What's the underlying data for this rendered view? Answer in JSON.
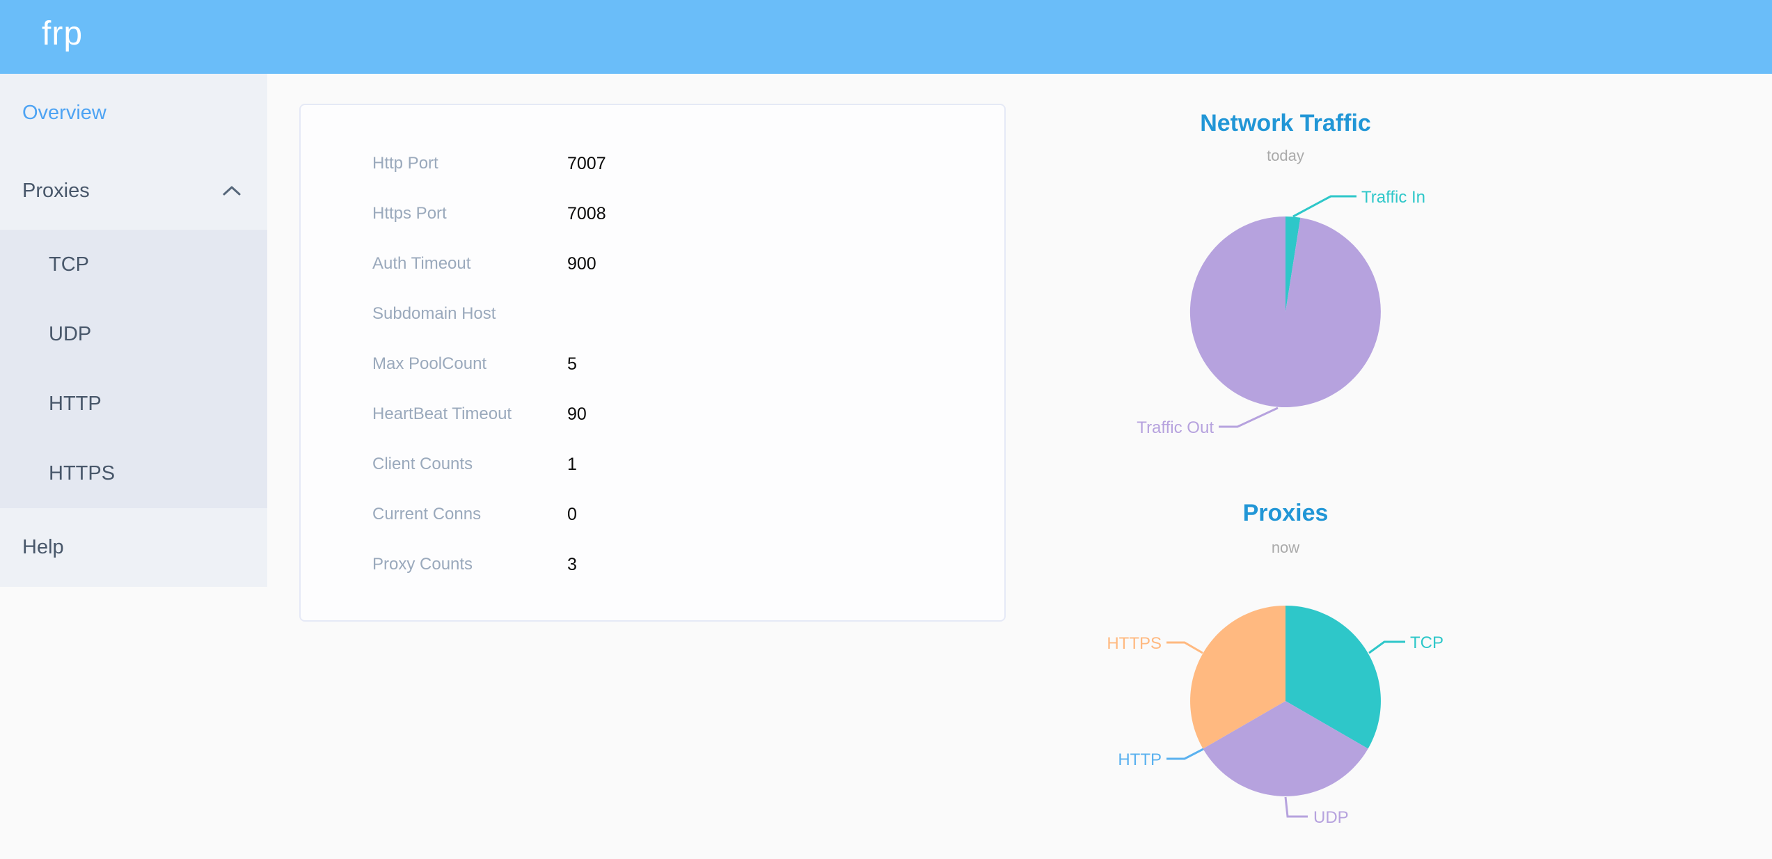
{
  "app": {
    "logo": "frp"
  },
  "sidebar": {
    "overview": "Overview",
    "proxies": "Proxies",
    "submenu": [
      "TCP",
      "UDP",
      "HTTP",
      "HTTPS"
    ],
    "help": "Help"
  },
  "server_info": {
    "rows": [
      {
        "label": "Http Port",
        "value": "7007"
      },
      {
        "label": "Https Port",
        "value": "7008"
      },
      {
        "label": "Auth Timeout",
        "value": "900"
      },
      {
        "label": "Subdomain Host",
        "value": ""
      },
      {
        "label": "Max PoolCount",
        "value": "5"
      },
      {
        "label": "HeartBeat Timeout",
        "value": "90"
      },
      {
        "label": "Client Counts",
        "value": "1"
      },
      {
        "label": "Current Conns",
        "value": "0"
      },
      {
        "label": "Proxy Counts",
        "value": "3"
      }
    ]
  },
  "chart_data": [
    {
      "type": "pie",
      "title": "Network Traffic",
      "subtitle": "today",
      "legend_position": "none",
      "slices": [
        {
          "label": "Traffic In",
          "value": 2.5,
          "color": "#2ec7c9"
        },
        {
          "label": "Traffic Out",
          "value": 97.5,
          "color": "#b6a2de"
        }
      ],
      "note": "values are percent of total traffic, estimated from slice angles"
    },
    {
      "type": "pie",
      "title": "Proxies",
      "subtitle": "now",
      "legend_position": "none",
      "slices": [
        {
          "label": "TCP",
          "value": 1,
          "color": "#2ec7c9"
        },
        {
          "label": "UDP",
          "value": 1,
          "color": "#b6a2de"
        },
        {
          "label": "HTTP",
          "value": 0,
          "color": "#5ab1ef"
        },
        {
          "label": "HTTPS",
          "value": 1,
          "color": "#ffb980"
        }
      ]
    }
  ],
  "colors": {
    "header_bg": "#6abdf9",
    "sidebar_bg": "#eef1f6",
    "submenu_bg": "#e4e8f1",
    "sidebar_text": "#48576a",
    "sidebar_active": "#4da3f3",
    "card_label": "#9aa9bc",
    "card_value": "#0b0b0b",
    "chart_title": "#2196d6",
    "chart_subtitle": "#aaaaaa"
  }
}
